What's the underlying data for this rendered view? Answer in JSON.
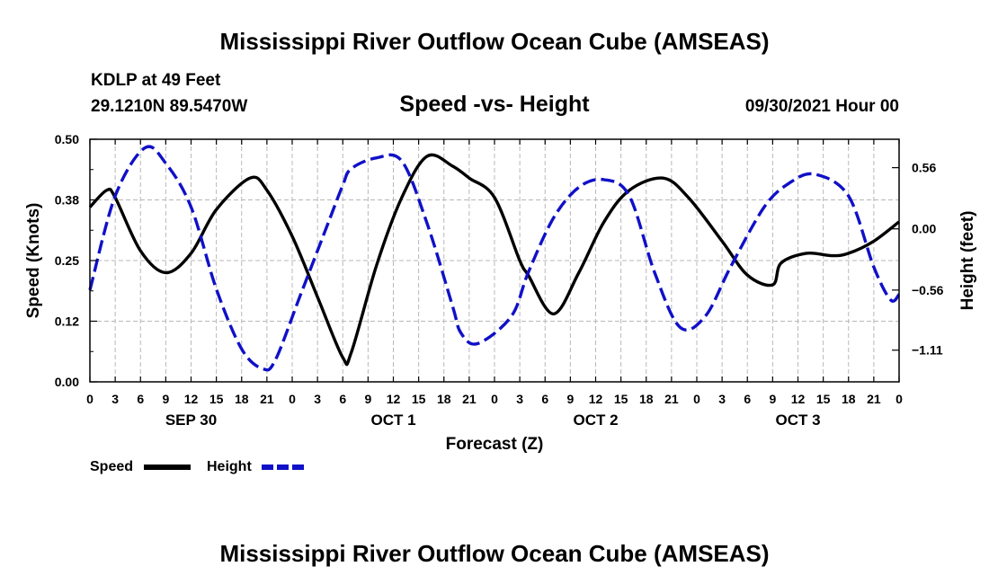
{
  "header": {
    "title": "Mississippi River Outflow Ocean Cube (AMSEAS)",
    "station_line": "KDLP at 49 Feet",
    "coords": "29.1210N  89.5470W",
    "subtitle": "Speed -vs- Height",
    "datetime": "09/30/2021 Hour 00"
  },
  "footer": {
    "title": "Mississippi River Outflow Ocean Cube (AMSEAS)"
  },
  "chart_data": {
    "type": "line",
    "title": "Speed -vs- Height",
    "xlabel": "Forecast (Z)",
    "ylabel_left": "Speed (Knots)",
    "ylabel_right": "Height (feet)",
    "grid": true,
    "x_range_hours": [
      0,
      96
    ],
    "x_tick_step_hours": 3,
    "x_tick_labels": [
      "0",
      "3",
      "6",
      "9",
      "12",
      "15",
      "18",
      "21",
      "0",
      "3",
      "6",
      "9",
      "12",
      "15",
      "18",
      "21",
      "0",
      "3",
      "6",
      "9",
      "12",
      "15",
      "18",
      "21",
      "0",
      "3",
      "6",
      "9",
      "12",
      "15",
      "18",
      "21",
      "0"
    ],
    "day_labels": [
      {
        "label": "SEP 30",
        "center_hour": 12
      },
      {
        "label": "OCT 1",
        "center_hour": 36
      },
      {
        "label": "OCT 2",
        "center_hour": 60
      },
      {
        "label": "OCT 3",
        "center_hour": 84
      }
    ],
    "left_axis": {
      "ylim": [
        0,
        0.5
      ],
      "ticks": [
        0,
        0.125,
        0.25,
        0.375,
        0.5
      ],
      "tick_labels": [
        "0.00",
        "0.12",
        "0.25",
        "0.38",
        "0.50"
      ]
    },
    "right_axis": {
      "ylim": [
        -1.4,
        0.82
      ],
      "ticks": [
        0.56,
        0,
        -0.56,
        -1.11
      ],
      "tick_labels": [
        "0.56",
        "0.00",
        "−0.56",
        "−1.11"
      ]
    },
    "series": [
      {
        "name": "Speed",
        "axis": "left",
        "color": "#000000",
        "style": "solid",
        "x": [
          0,
          2,
          3,
          6,
          9,
          12,
          15,
          19,
          21,
          24,
          27,
          30,
          31,
          34,
          37,
          40,
          43,
          45,
          48,
          51,
          52,
          55,
          58,
          61,
          64,
          68,
          71,
          75,
          78,
          81,
          82,
          85,
          88,
          90,
          93,
          96
        ],
        "y": [
          0.36,
          0.395,
          0.38,
          0.27,
          0.225,
          0.265,
          0.355,
          0.42,
          0.395,
          0.3,
          0.175,
          0.05,
          0.06,
          0.24,
          0.38,
          0.465,
          0.445,
          0.42,
          0.38,
          0.25,
          0.22,
          0.14,
          0.225,
          0.33,
          0.395,
          0.42,
          0.38,
          0.29,
          0.22,
          0.2,
          0.245,
          0.265,
          0.26,
          0.265,
          0.29,
          0.33
        ]
      },
      {
        "name": "Height",
        "axis": "right",
        "color": "#1010c8",
        "style": "dashed",
        "x": [
          0,
          3,
          6.5,
          9,
          12,
          15,
          18,
          20.5,
          22,
          25,
          28,
          30,
          31,
          34,
          37,
          40,
          43,
          44,
          46,
          50,
          52,
          55,
          58,
          61,
          64,
          67,
          70,
          73,
          76,
          80,
          83,
          86,
          90,
          93,
          95,
          96
        ],
        "y": [
          -0.56,
          0.3,
          0.74,
          0.6,
          0.2,
          -0.55,
          -1.1,
          -1.28,
          -1.2,
          -0.6,
          0.0,
          0.4,
          0.55,
          0.65,
          0.62,
          0.05,
          -0.7,
          -0.95,
          -1.05,
          -0.8,
          -0.4,
          0.1,
          0.38,
          0.45,
          0.3,
          -0.4,
          -0.9,
          -0.8,
          -0.35,
          0.2,
          0.42,
          0.5,
          0.3,
          -0.35,
          -0.65,
          -0.6
        ]
      }
    ]
  },
  "legend": {
    "speed_label": "Speed",
    "height_label": "Height",
    "speed_color": "#000000",
    "height_color": "#1010c8"
  }
}
